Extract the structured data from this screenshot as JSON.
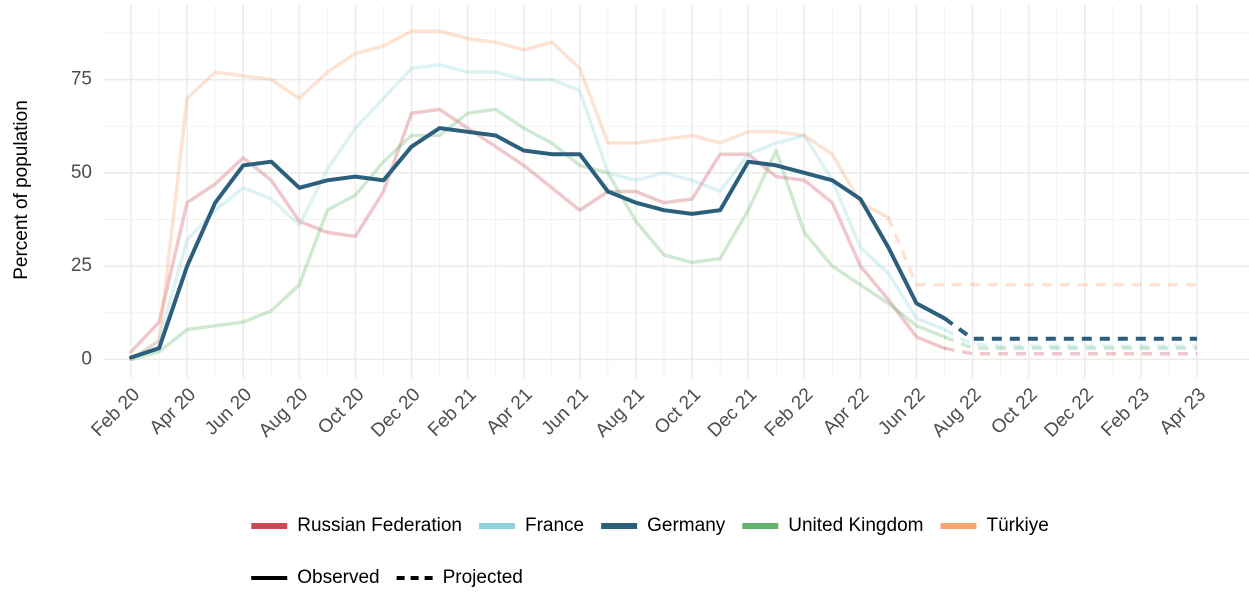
{
  "chart_data": {
    "type": "line",
    "ylabel": "Percent of population",
    "categories": [
      "Feb 20",
      null,
      "Apr 20",
      null,
      "Jun 20",
      null,
      "Aug 20",
      null,
      "Oct 20",
      null,
      "Dec 20",
      null,
      "Feb 21",
      null,
      "Apr 21",
      null,
      "Jun 21",
      null,
      "Aug 21",
      null,
      "Oct 21",
      null,
      "Dec 21",
      null,
      "Feb 22",
      null,
      "Apr 22",
      null,
      "Jun 22",
      null,
      "Aug 22",
      null,
      "Oct 22",
      null,
      "Dec 22",
      null,
      "Feb 23",
      null,
      "Apr 23"
    ],
    "ylim": [
      -5,
      95
    ],
    "yticks": [
      0,
      25,
      50,
      75
    ],
    "grid": true,
    "legend": "bottom",
    "series": [
      {
        "name": "Russian Federation",
        "color": "#c94a55",
        "alpha": 0.3,
        "values": [
          2,
          10,
          42,
          47,
          54,
          48,
          37,
          34,
          33,
          45,
          66,
          67,
          62,
          57,
          52,
          46,
          40,
          45,
          45,
          42,
          43,
          55,
          55,
          49,
          48,
          42,
          25,
          16,
          6,
          3,
          null,
          null,
          null,
          null,
          null,
          null,
          null,
          null,
          null
        ],
        "projected": [
          null,
          null,
          null,
          null,
          null,
          null,
          null,
          null,
          null,
          null,
          null,
          null,
          null,
          null,
          null,
          null,
          null,
          null,
          null,
          null,
          null,
          null,
          null,
          null,
          null,
          null,
          null,
          null,
          null,
          3,
          1.5,
          1.5,
          1.5,
          1.5,
          1.5,
          1.5,
          1.5,
          1.5,
          1.5
        ]
      },
      {
        "name": "France",
        "color": "#8ed3dc",
        "alpha": 0.3,
        "values": [
          0,
          5,
          32,
          40,
          46,
          43,
          36,
          51,
          62,
          70,
          78,
          79,
          77,
          77,
          75,
          75,
          72,
          50,
          48,
          50,
          48,
          45,
          55,
          58,
          60,
          48,
          30,
          23,
          11,
          8,
          null,
          null,
          null,
          null,
          null,
          null,
          null,
          null,
          null
        ],
        "projected": [
          null,
          null,
          null,
          null,
          null,
          null,
          null,
          null,
          null,
          null,
          null,
          null,
          null,
          null,
          null,
          null,
          null,
          null,
          null,
          null,
          null,
          null,
          null,
          null,
          null,
          null,
          null,
          null,
          null,
          8,
          4,
          3.5,
          3.5,
          3.5,
          3.5,
          3.5,
          3.5,
          3.5,
          3.5
        ]
      },
      {
        "name": "Germany",
        "color": "#2b5f7c",
        "alpha": 1,
        "values": [
          0.5,
          3,
          25,
          42,
          52,
          53,
          46,
          48,
          49,
          48,
          57,
          62,
          61,
          60,
          56,
          55,
          55,
          45,
          42,
          40,
          39,
          40,
          53,
          52,
          50,
          48,
          43,
          30,
          15,
          11,
          null,
          null,
          null,
          null,
          null,
          null,
          null,
          null,
          null
        ],
        "projected": [
          null,
          null,
          null,
          null,
          null,
          null,
          null,
          null,
          null,
          null,
          null,
          null,
          null,
          null,
          null,
          null,
          null,
          null,
          null,
          null,
          null,
          null,
          null,
          null,
          null,
          null,
          null,
          null,
          null,
          11,
          5.5,
          5.5,
          5.5,
          5.5,
          5.5,
          5.5,
          5.5,
          5.5,
          5.5
        ]
      },
      {
        "name": "United Kingdom",
        "color": "#62b56b",
        "alpha": 0.3,
        "values": [
          0,
          2,
          8,
          9,
          10,
          13,
          20,
          40,
          44,
          53,
          60,
          60,
          66,
          67,
          62,
          58,
          52,
          50,
          37,
          28,
          26,
          27,
          40,
          56,
          34,
          25,
          20,
          15,
          9,
          6,
          null,
          null,
          null,
          null,
          null,
          null,
          null,
          null,
          null
        ],
        "projected": [
          null,
          null,
          null,
          null,
          null,
          null,
          null,
          null,
          null,
          null,
          null,
          null,
          null,
          null,
          null,
          null,
          null,
          null,
          null,
          null,
          null,
          null,
          null,
          null,
          null,
          null,
          null,
          null,
          null,
          6,
          3,
          3,
          3,
          3,
          3,
          3,
          3,
          3,
          3
        ]
      },
      {
        "name": "Türkiye",
        "color": "#f7a26f",
        "alpha": 0.3,
        "values": [
          0,
          5,
          70,
          77,
          76,
          75,
          70,
          77,
          82,
          84,
          88,
          88,
          86,
          85,
          83,
          85,
          78,
          58,
          58,
          59,
          60,
          58,
          61,
          61,
          60,
          55,
          42,
          38,
          null,
          null,
          null,
          null,
          null,
          null,
          null,
          null,
          null,
          null,
          null
        ],
        "projected": [
          null,
          null,
          null,
          null,
          null,
          null,
          null,
          null,
          null,
          null,
          null,
          null,
          null,
          null,
          null,
          null,
          null,
          null,
          null,
          null,
          null,
          null,
          null,
          null,
          null,
          null,
          null,
          38,
          20,
          20,
          20,
          20,
          20,
          20,
          20,
          20,
          20,
          20,
          20
        ]
      }
    ],
    "linetypes": [
      {
        "name": "Observed",
        "dash": "solid"
      },
      {
        "name": "Projected",
        "dash": "dashed"
      }
    ]
  }
}
